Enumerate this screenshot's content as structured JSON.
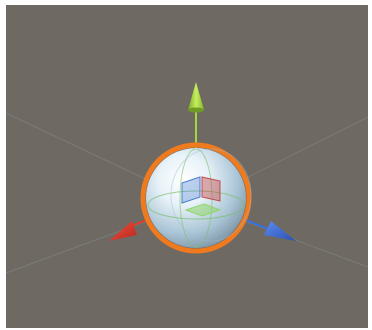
{
  "scene": {
    "background_color": "#6e6a63",
    "grid_color": "#838a8c",
    "selected_object": {
      "type": "sphere",
      "outline_color": "#f07a1e",
      "is_selected": true
    },
    "gizmo": {
      "tool": "move",
      "axes": [
        {
          "axis": "y",
          "color": "#a7d83a"
        },
        {
          "axis": "x",
          "color": "#e23a2a"
        },
        {
          "axis": "z",
          "color": "#3a6fe0"
        }
      ],
      "plane_handle_colors": [
        "#c24a4a",
        "#4a7fd0",
        "#8fd66a"
      ]
    }
  }
}
